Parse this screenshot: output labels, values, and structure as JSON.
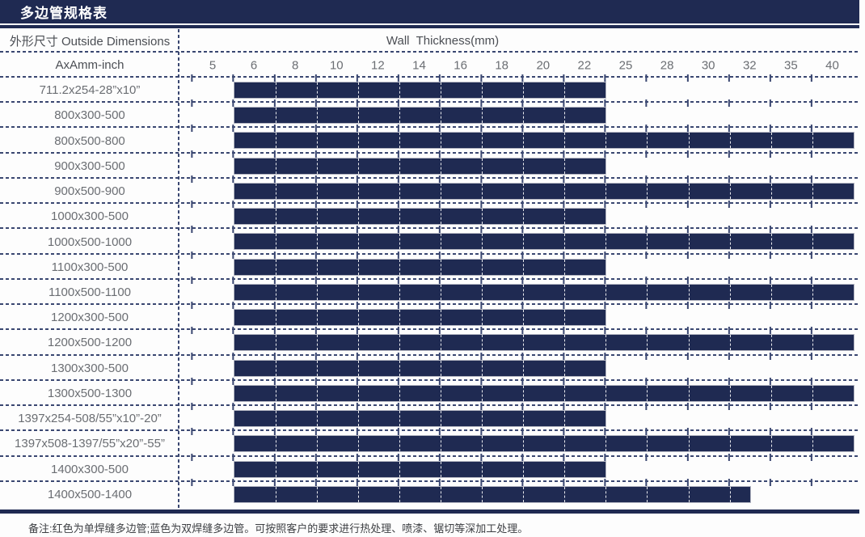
{
  "header": {
    "title": "多边管规格表"
  },
  "chart_data": {
    "type": "table",
    "title": "多边管规格表",
    "x_axis_label": "Wall  Thickness(mm)",
    "columns": {
      "dimension_header": "外形尺寸 Outside Dimensions",
      "dimension_unit": "AxAmm-inch",
      "thickness_header": "Wall  Thickness(mm)"
    },
    "thickness_ticks_mm": [
      5,
      6,
      8,
      10,
      12,
      14,
      16,
      18,
      20,
      22,
      25,
      28,
      30,
      32,
      35,
      40
    ],
    "rows": [
      {
        "label": "711.2x254-28”x10”",
        "thickness_min_mm": 6,
        "thickness_max_mm": 22
      },
      {
        "label": "800x300-500",
        "thickness_min_mm": 6,
        "thickness_max_mm": 22
      },
      {
        "label": "800x500-800",
        "thickness_min_mm": 6,
        "thickness_max_mm": 40
      },
      {
        "label": "900x300-500",
        "thickness_min_mm": 6,
        "thickness_max_mm": 22
      },
      {
        "label": "900x500-900",
        "thickness_min_mm": 6,
        "thickness_max_mm": 40
      },
      {
        "label": "1000x300-500",
        "thickness_min_mm": 6,
        "thickness_max_mm": 22
      },
      {
        "label": "1000x500-1000",
        "thickness_min_mm": 6,
        "thickness_max_mm": 40
      },
      {
        "label": "1100x300-500",
        "thickness_min_mm": 6,
        "thickness_max_mm": 22
      },
      {
        "label": "1100x500-1100",
        "thickness_min_mm": 6,
        "thickness_max_mm": 40
      },
      {
        "label": "1200x300-500",
        "thickness_min_mm": 6,
        "thickness_max_mm": 22
      },
      {
        "label": "1200x500-1200",
        "thickness_min_mm": 6,
        "thickness_max_mm": 40
      },
      {
        "label": "1300x300-500",
        "thickness_min_mm": 6,
        "thickness_max_mm": 22
      },
      {
        "label": "1300x500-1300",
        "thickness_min_mm": 6,
        "thickness_max_mm": 40
      },
      {
        "label": "1397x254-508/55”x10”-20”",
        "thickness_min_mm": 6,
        "thickness_max_mm": 22
      },
      {
        "label": "1397x508-1397/55”x20”-55”",
        "thickness_min_mm": 6,
        "thickness_max_mm": 40
      },
      {
        "label": "1400x300-500",
        "thickness_min_mm": 6,
        "thickness_max_mm": 22
      },
      {
        "label": "1400x500-1400",
        "thickness_min_mm": 6,
        "thickness_max_mm": 32,
        "bar_end": "half-column"
      }
    ]
  },
  "footnote": "备注:红色为单焊缝多边管;蓝色为双焊缝多边管。可按照客户的要求进行热处理、喷漆、锯切等深加工处理。",
  "colors": {
    "navy": "#1f2a52",
    "grid_dash": "#3a4771",
    "bar_fill": "#1f2a52",
    "bar_outline": "#b5b7c3",
    "bar_separator": "#ffffff",
    "header_text": "#4b4e54",
    "label_text": "#6b6e73",
    "note_text": "#3d3f43",
    "title_text": "#ffffff"
  }
}
